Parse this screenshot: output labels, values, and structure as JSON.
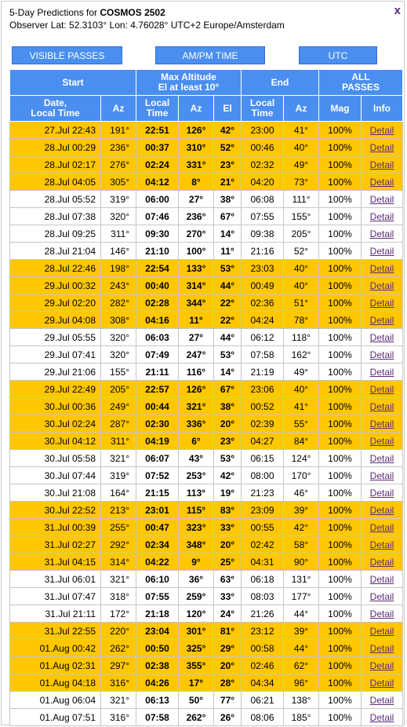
{
  "header": {
    "title_prefix": "5-Day Predictions for ",
    "satellite": "COSMOS 2502",
    "observer_line": "Observer Lat: 52.3103° Lon: 4.76028° UTC+2 Europe/Amsterdam",
    "close_label": "x"
  },
  "buttons": {
    "visible_passes": "VISIBLE PASSES",
    "ampm_time": "AM/PM TIME",
    "utc": "UTC"
  },
  "table": {
    "group_headers": {
      "start": "Start",
      "max_altitude": "Max Altitude",
      "max_altitude_sub": "El at least 10°",
      "end": "End",
      "all": "ALL",
      "passes": "PASSES"
    },
    "columns": {
      "date_a": "Date,",
      "date_b": "Local Time",
      "az": "Az",
      "local_a": "Local",
      "local_b": "Time",
      "az2": "Az",
      "el": "El",
      "local2_a": "Local",
      "local2_b": "Time",
      "az3": "Az",
      "mag": "Mag",
      "info": "Info"
    },
    "rows": [
      {
        "vis": true,
        "start": "27.Jul 22:43",
        "start_az": "191°",
        "max_time": "22:51",
        "max_az": "126°",
        "max_el": "42°",
        "end_time": "23:00",
        "end_az": "41°",
        "mag": "100%",
        "info": "Detail"
      },
      {
        "vis": true,
        "start": "28.Jul 00:29",
        "start_az": "236°",
        "max_time": "00:37",
        "max_az": "310°",
        "max_el": "52°",
        "end_time": "00:46",
        "end_az": "40°",
        "mag": "100%",
        "info": "Detail"
      },
      {
        "vis": true,
        "start": "28.Jul 02:17",
        "start_az": "276°",
        "max_time": "02:24",
        "max_az": "331°",
        "max_el": "23°",
        "end_time": "02:32",
        "end_az": "49°",
        "mag": "100%",
        "info": "Detail"
      },
      {
        "vis": true,
        "start": "28.Jul 04:05",
        "start_az": "305°",
        "max_time": "04:12",
        "max_az": "8°",
        "max_el": "21°",
        "end_time": "04:20",
        "end_az": "73°",
        "mag": "100%",
        "info": "Detail"
      },
      {
        "vis": false,
        "start": "28.Jul 05:52",
        "start_az": "319°",
        "max_time": "06:00",
        "max_az": "27°",
        "max_el": "38°",
        "end_time": "06:08",
        "end_az": "111°",
        "mag": "100%",
        "info": "Detail"
      },
      {
        "vis": false,
        "start": "28.Jul 07:38",
        "start_az": "320°",
        "max_time": "07:46",
        "max_az": "236°",
        "max_el": "67°",
        "end_time": "07:55",
        "end_az": "155°",
        "mag": "100%",
        "info": "Detail"
      },
      {
        "vis": false,
        "start": "28.Jul 09:25",
        "start_az": "311°",
        "max_time": "09:30",
        "max_az": "270°",
        "max_el": "14°",
        "end_time": "09:38",
        "end_az": "205°",
        "mag": "100%",
        "info": "Detail"
      },
      {
        "vis": false,
        "start": "28.Jul 21:04",
        "start_az": "146°",
        "max_time": "21:10",
        "max_az": "100°",
        "max_el": "11°",
        "end_time": "21:16",
        "end_az": "52°",
        "mag": "100%",
        "info": "Detail"
      },
      {
        "vis": true,
        "start": "28.Jul 22:46",
        "start_az": "198°",
        "max_time": "22:54",
        "max_az": "133°",
        "max_el": "53°",
        "end_time": "23:03",
        "end_az": "40°",
        "mag": "100%",
        "info": "Detail"
      },
      {
        "vis": true,
        "start": "29.Jul 00:32",
        "start_az": "243°",
        "max_time": "00:40",
        "max_az": "314°",
        "max_el": "44°",
        "end_time": "00:49",
        "end_az": "40°",
        "mag": "100%",
        "info": "Detail"
      },
      {
        "vis": true,
        "start": "29.Jul 02:20",
        "start_az": "282°",
        "max_time": "02:28",
        "max_az": "344°",
        "max_el": "22°",
        "end_time": "02:36",
        "end_az": "51°",
        "mag": "100%",
        "info": "Detail"
      },
      {
        "vis": true,
        "start": "29.Jul 04:08",
        "start_az": "308°",
        "max_time": "04:16",
        "max_az": "11°",
        "max_el": "22°",
        "end_time": "04:24",
        "end_az": "78°",
        "mag": "100%",
        "info": "Detail"
      },
      {
        "vis": false,
        "start": "29.Jul 05:55",
        "start_az": "320°",
        "max_time": "06:03",
        "max_az": "27°",
        "max_el": "44°",
        "end_time": "06:12",
        "end_az": "118°",
        "mag": "100%",
        "info": "Detail"
      },
      {
        "vis": false,
        "start": "29.Jul 07:41",
        "start_az": "320°",
        "max_time": "07:49",
        "max_az": "247°",
        "max_el": "53°",
        "end_time": "07:58",
        "end_az": "162°",
        "mag": "100%",
        "info": "Detail"
      },
      {
        "vis": false,
        "start": "29.Jul 21:06",
        "start_az": "155°",
        "max_time": "21:11",
        "max_az": "116°",
        "max_el": "14°",
        "end_time": "21:19",
        "end_az": "49°",
        "mag": "100%",
        "info": "Detail"
      },
      {
        "vis": true,
        "start": "29.Jul 22:49",
        "start_az": "205°",
        "max_time": "22:57",
        "max_az": "126°",
        "max_el": "67°",
        "end_time": "23:06",
        "end_az": "40°",
        "mag": "100%",
        "info": "Detail"
      },
      {
        "vis": true,
        "start": "30.Jul 00:36",
        "start_az": "249°",
        "max_time": "00:44",
        "max_az": "321°",
        "max_el": "38°",
        "end_time": "00:52",
        "end_az": "41°",
        "mag": "100%",
        "info": "Detail"
      },
      {
        "vis": true,
        "start": "30.Jul 02:24",
        "start_az": "287°",
        "max_time": "02:30",
        "max_az": "336°",
        "max_el": "20°",
        "end_time": "02:39",
        "end_az": "55°",
        "mag": "100%",
        "info": "Detail"
      },
      {
        "vis": true,
        "start": "30.Jul 04:12",
        "start_az": "311°",
        "max_time": "04:19",
        "max_az": "6°",
        "max_el": "23°",
        "end_time": "04:27",
        "end_az": "84°",
        "mag": "100%",
        "info": "Detail"
      },
      {
        "vis": false,
        "start": "30.Jul 05:58",
        "start_az": "321°",
        "max_time": "06:07",
        "max_az": "43°",
        "max_el": "53°",
        "end_time": "06:15",
        "end_az": "124°",
        "mag": "100%",
        "info": "Detail"
      },
      {
        "vis": false,
        "start": "30.Jul 07:44",
        "start_az": "319°",
        "max_time": "07:52",
        "max_az": "253°",
        "max_el": "42°",
        "end_time": "08:00",
        "end_az": "170°",
        "mag": "100%",
        "info": "Detail"
      },
      {
        "vis": false,
        "start": "30.Jul 21:08",
        "start_az": "164°",
        "max_time": "21:15",
        "max_az": "113°",
        "max_el": "19°",
        "end_time": "21:23",
        "end_az": "46°",
        "mag": "100%",
        "info": "Detail"
      },
      {
        "vis": true,
        "start": "30.Jul 22:52",
        "start_az": "213°",
        "max_time": "23:01",
        "max_az": "115°",
        "max_el": "83°",
        "end_time": "23:09",
        "end_az": "39°",
        "mag": "100%",
        "info": "Detail"
      },
      {
        "vis": true,
        "start": "31.Jul 00:39",
        "start_az": "255°",
        "max_time": "00:47",
        "max_az": "323°",
        "max_el": "33°",
        "end_time": "00:55",
        "end_az": "42°",
        "mag": "100%",
        "info": "Detail"
      },
      {
        "vis": true,
        "start": "31.Jul 02:27",
        "start_az": "292°",
        "max_time": "02:34",
        "max_az": "348°",
        "max_el": "20°",
        "end_time": "02:42",
        "end_az": "58°",
        "mag": "100%",
        "info": "Detail"
      },
      {
        "vis": true,
        "start": "31.Jul 04:15",
        "start_az": "314°",
        "max_time": "04:22",
        "max_az": "9°",
        "max_el": "25°",
        "end_time": "04:31",
        "end_az": "90°",
        "mag": "100%",
        "info": "Detail"
      },
      {
        "vis": false,
        "start": "31.Jul 06:01",
        "start_az": "321°",
        "max_time": "06:10",
        "max_az": "36°",
        "max_el": "63°",
        "end_time": "06:18",
        "end_az": "131°",
        "mag": "100%",
        "info": "Detail"
      },
      {
        "vis": false,
        "start": "31.Jul 07:47",
        "start_az": "318°",
        "max_time": "07:55",
        "max_az": "259°",
        "max_el": "33°",
        "end_time": "08:03",
        "end_az": "177°",
        "mag": "100%",
        "info": "Detail"
      },
      {
        "vis": false,
        "start": "31.Jul 21:11",
        "start_az": "172°",
        "max_time": "21:18",
        "max_az": "120°",
        "max_el": "24°",
        "end_time": "21:26",
        "end_az": "44°",
        "mag": "100%",
        "info": "Detail"
      },
      {
        "vis": true,
        "start": "31.Jul 22:55",
        "start_az": "220°",
        "max_time": "23:04",
        "max_az": "301°",
        "max_el": "81°",
        "end_time": "23:12",
        "end_az": "39°",
        "mag": "100%",
        "info": "Detail"
      },
      {
        "vis": true,
        "start": "01.Aug 00:42",
        "start_az": "262°",
        "max_time": "00:50",
        "max_az": "325°",
        "max_el": "29°",
        "end_time": "00:58",
        "end_az": "44°",
        "mag": "100%",
        "info": "Detail"
      },
      {
        "vis": true,
        "start": "01.Aug 02:31",
        "start_az": "297°",
        "max_time": "02:38",
        "max_az": "355°",
        "max_el": "20°",
        "end_time": "02:46",
        "end_az": "62°",
        "mag": "100%",
        "info": "Detail"
      },
      {
        "vis": true,
        "start": "01.Aug 04:18",
        "start_az": "316°",
        "max_time": "04:26",
        "max_az": "17°",
        "max_el": "28°",
        "end_time": "04:34",
        "end_az": "96°",
        "mag": "100%",
        "info": "Detail"
      },
      {
        "vis": false,
        "start": "01.Aug 06:04",
        "start_az": "321°",
        "max_time": "06:13",
        "max_az": "50°",
        "max_el": "77°",
        "end_time": "06:21",
        "end_az": "138°",
        "mag": "100%",
        "info": "Detail"
      },
      {
        "vis": false,
        "start": "01.Aug 07:51",
        "start_az": "316°",
        "max_time": "07:58",
        "max_az": "262°",
        "max_el": "26°",
        "end_time": "08:06",
        "end_az": "185°",
        "mag": "100%",
        "info": "Detail"
      }
    ]
  },
  "colors": {
    "header_blue": "#4a8ff0",
    "visible_row": "#ffc700",
    "link_purple": "#5b2b7a"
  }
}
